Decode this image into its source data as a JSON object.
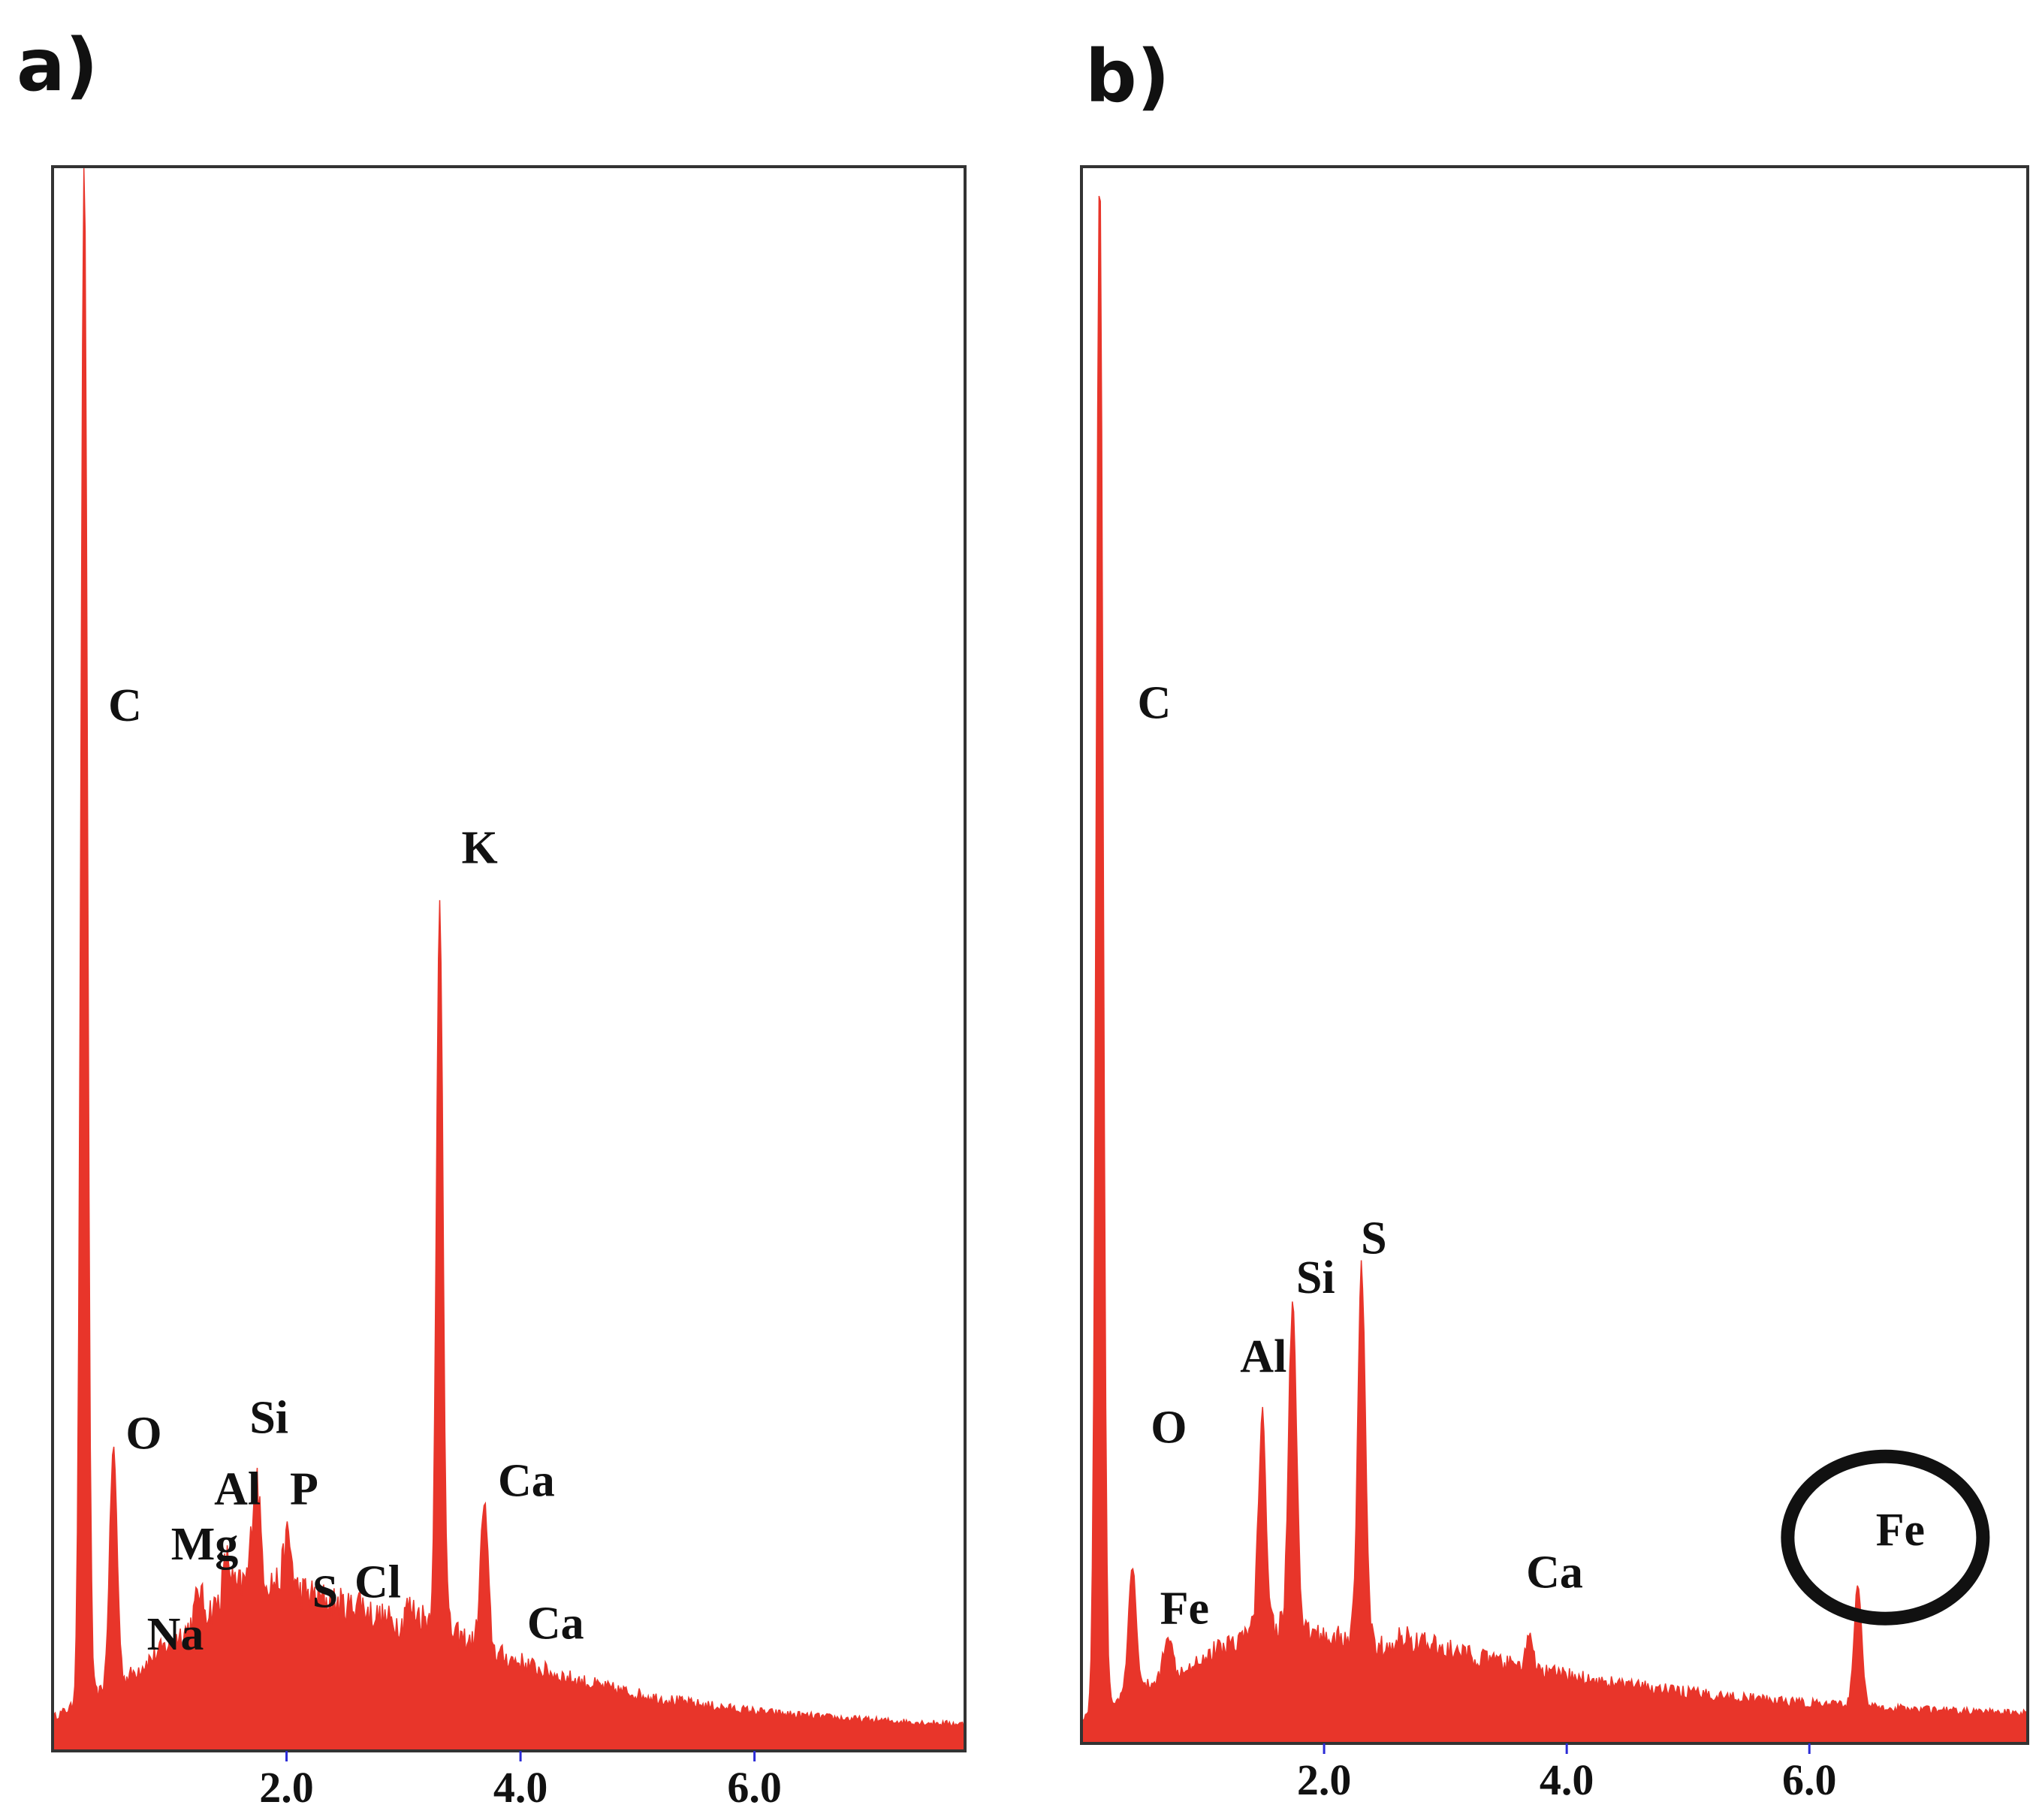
{
  "chart_data": [
    {
      "type": "area",
      "panel_label": "a)",
      "color": "#e8352a",
      "xlim": [
        0,
        7.8
      ],
      "ylim": [
        0,
        100
      ],
      "x_ticks": [
        2.0,
        4.0,
        6.0
      ],
      "x_tick_labels": [
        "2.0",
        "4.0",
        "6.0"
      ],
      "peaks": [
        {
          "element": "C",
          "x": 0.27,
          "y": 100,
          "label_x": 0.62,
          "label_y": 65
        },
        {
          "element": "O",
          "x": 0.52,
          "y": 19,
          "label_x": 0.78,
          "label_y": 19
        },
        {
          "element": "Na",
          "x": 1.04,
          "y": 5,
          "label_x": 1.05,
          "label_y": 6.3
        },
        {
          "element": "Mg",
          "x": 1.25,
          "y": 10,
          "label_x": 1.3,
          "label_y": 12
        },
        {
          "element": "Al",
          "x": 1.49,
          "y": 12,
          "label_x": 1.58,
          "label_y": 15.5
        },
        {
          "element": "Si",
          "x": 1.74,
          "y": 17.5,
          "label_x": 1.85,
          "label_y": 20
        },
        {
          "element": "P",
          "x": 2.01,
          "y": 13.5,
          "label_x": 2.15,
          "label_y": 15.5
        },
        {
          "element": "S",
          "x": 2.31,
          "y": 9,
          "label_x": 2.33,
          "label_y": 9
        },
        {
          "element": "Cl",
          "x": 2.62,
          "y": 9.5,
          "label_x": 2.78,
          "label_y": 9.6
        },
        {
          "element": "K",
          "x": 3.31,
          "y": 53.5,
          "label_x": 3.65,
          "label_y": 56
        },
        {
          "element": "Ca",
          "x": 3.69,
          "y": 15.5,
          "label_x": 4.05,
          "label_y": 16
        },
        {
          "element": "Ca",
          "x": 4.01,
          "y": 5.5,
          "label_x": 4.3,
          "label_y": 7
        }
      ]
    },
    {
      "type": "area",
      "panel_label": "b)",
      "color": "#e8352a",
      "xlim": [
        0,
        7.8
      ],
      "ylim": [
        0,
        100
      ],
      "x_ticks": [
        2.0,
        4.0,
        6.0
      ],
      "x_tick_labels": [
        "2.0",
        "4.0",
        "6.0"
      ],
      "peaks": [
        {
          "element": "C",
          "x": 0.15,
          "y": 100,
          "label_x": 0.6,
          "label_y": 65
        },
        {
          "element": "O",
          "x": 0.42,
          "y": 11,
          "label_x": 0.72,
          "label_y": 19
        },
        {
          "element": "Fe",
          "x": 0.71,
          "y": 7,
          "label_x": 0.85,
          "label_y": 7.5
        },
        {
          "element": "Al",
          "x": 1.49,
          "y": 20.5,
          "label_x": 1.5,
          "label_y": 23.5
        },
        {
          "element": "Si",
          "x": 1.74,
          "y": 28,
          "label_x": 1.93,
          "label_y": 28.5
        },
        {
          "element": "S",
          "x": 2.31,
          "y": 30,
          "label_x": 2.41,
          "label_y": 31
        },
        {
          "element": "Ca",
          "x": 3.69,
          "y": 6.5,
          "label_x": 3.9,
          "label_y": 9.8
        },
        {
          "element": "Fe",
          "x": 6.4,
          "y": 10,
          "label_x": 6.75,
          "label_y": 12.5,
          "circled": true
        }
      ]
    }
  ]
}
